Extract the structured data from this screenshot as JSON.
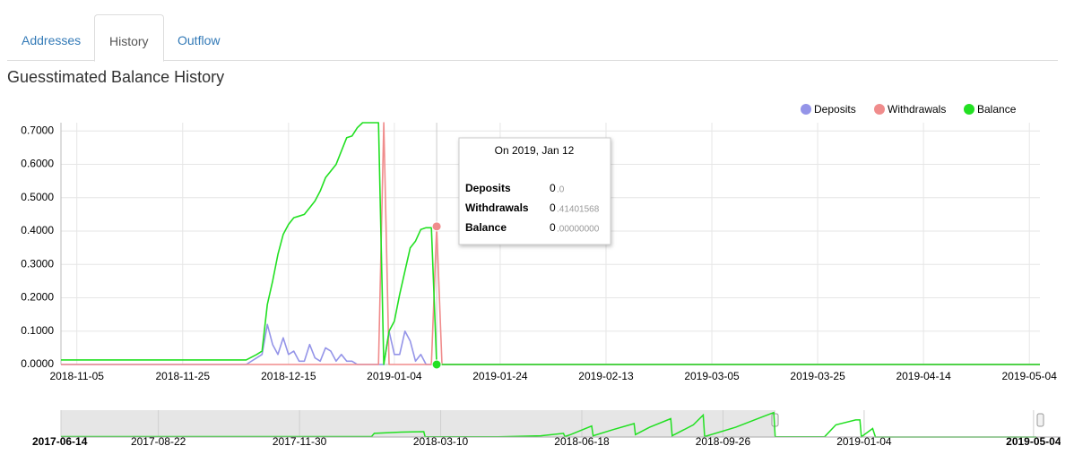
{
  "tabs": [
    "Addresses",
    "History",
    "Outflow"
  ],
  "active_tab": 1,
  "heading": "Guesstimated Balance History",
  "chart_data": {
    "type": "line",
    "x": [
      "2018-11-02",
      "2018-12-07",
      "2018-12-09",
      "2018-12-10",
      "2018-12-11",
      "2018-12-12",
      "2018-12-13",
      "2018-12-14",
      "2018-12-15",
      "2018-12-16",
      "2018-12-17",
      "2018-12-18",
      "2018-12-19",
      "2018-12-20",
      "2018-12-21",
      "2018-12-22",
      "2018-12-23",
      "2018-12-24",
      "2018-12-25",
      "2018-12-26",
      "2018-12-27",
      "2018-12-28",
      "2018-12-29",
      "2018-12-30",
      "2018-12-31",
      "2019-01-01",
      "2019-01-02",
      "2019-01-03",
      "2019-01-04",
      "2019-01-05",
      "2019-01-06",
      "2019-01-07",
      "2019-01-08",
      "2019-01-09",
      "2019-01-10",
      "2019-01-11",
      "2019-01-12",
      "2019-01-13",
      "2019-02-01",
      "2019-05-06"
    ],
    "series": [
      {
        "name": "Deposits",
        "color": "#9494e8",
        "values": [
          0,
          0,
          0.02,
          0.03,
          0.12,
          0.06,
          0.03,
          0.08,
          0.03,
          0.04,
          0.01,
          0.01,
          0.06,
          0.02,
          0.01,
          0.05,
          0.04,
          0.01,
          0.03,
          0.01,
          0.01,
          0,
          0,
          0,
          0,
          0,
          0,
          0.1,
          0.03,
          0.03,
          0.1,
          0.07,
          0.01,
          0.03,
          0,
          0,
          0,
          0,
          0,
          0
        ]
      },
      {
        "name": "Withdrawals",
        "color": "#f08c8c",
        "values": [
          0,
          0,
          0,
          0,
          0,
          0,
          0,
          0,
          0,
          0,
          0,
          0,
          0,
          0,
          0,
          0,
          0,
          0,
          0,
          0,
          0,
          0,
          0,
          0,
          0,
          0,
          0.725,
          0,
          0,
          0,
          0,
          0,
          0,
          0,
          0,
          0,
          0.41401568,
          0,
          0,
          0
        ]
      },
      {
        "name": "Balance",
        "color": "#22e022",
        "values": [
          0.0137,
          0.0137,
          0.03,
          0.04,
          0.18,
          0.25,
          0.33,
          0.39,
          0.42,
          0.44,
          0.445,
          0.45,
          0.47,
          0.49,
          0.52,
          0.56,
          0.58,
          0.6,
          0.64,
          0.68,
          0.685,
          0.71,
          0.725,
          0.725,
          0.725,
          0.725,
          0,
          0.1,
          0.13,
          0.21,
          0.28,
          0.35,
          0.37,
          0.405,
          0.41,
          0.41,
          0,
          0,
          0,
          0
        ]
      }
    ],
    "xlim": [
      "2018-11-02",
      "2019-05-06"
    ],
    "xticks": [
      "2018-11-05",
      "2018-11-25",
      "2018-12-15",
      "2019-01-04",
      "2019-01-24",
      "2019-02-13",
      "2019-03-05",
      "2019-03-25",
      "2019-04-14",
      "2019-05-04"
    ],
    "ylim": [
      0,
      0.725
    ],
    "yticks": [
      {
        "value": 0,
        "label": "0.0000"
      },
      {
        "value": 0.1,
        "label": "0.1000"
      },
      {
        "value": 0.2,
        "label": "0.2000"
      },
      {
        "value": 0.3,
        "label": "0.3000"
      },
      {
        "value": 0.4,
        "label": "0.4000"
      },
      {
        "value": 0.5,
        "label": "0.5000"
      },
      {
        "value": 0.6,
        "label": "0.6000"
      },
      {
        "value": 0.7,
        "label": "0.7000"
      }
    ],
    "grid": true,
    "legend": "top-right",
    "tooltip": {
      "title": "On 2019, Jan 12",
      "rows": [
        {
          "label": "Deposits",
          "int": "0",
          "frac": ".0"
        },
        {
          "label": "Withdrawals",
          "int": "0",
          "frac": ".41401568"
        },
        {
          "label": "Balance",
          "int": "0",
          "frac": ".00000000"
        }
      ]
    },
    "navigator": {
      "color": "#22e022",
      "x": [
        "2017-06-14",
        "2018-01-20",
        "2018-01-22",
        "2018-02-10",
        "2018-02-26",
        "2018-02-27",
        "2018-04-20",
        "2018-05-20",
        "2018-06-05",
        "2018-06-06",
        "2018-06-10",
        "2018-06-25",
        "2018-06-26",
        "2018-07-10",
        "2018-07-25",
        "2018-07-26",
        "2018-08-05",
        "2018-08-20",
        "2018-08-21",
        "2018-09-05",
        "2018-09-12",
        "2018-09-13",
        "2018-10-05",
        "2018-10-25",
        "2018-11-01",
        "2018-11-02",
        "2018-12-07",
        "2018-12-15",
        "2018-12-29",
        "2019-01-01",
        "2019-01-02",
        "2019-01-10",
        "2019-01-12",
        "2019-05-06"
      ],
      "values": [
        0.02,
        0.02,
        0.15,
        0.2,
        0.22,
        0.01,
        0.01,
        0.05,
        0.15,
        0.02,
        0.1,
        0.45,
        0.05,
        0.3,
        0.55,
        0.1,
        0.4,
        0.75,
        0.05,
        0.5,
        0.9,
        0.02,
        0.4,
        0.85,
        1.0,
        0.01,
        0.01,
        0.5,
        0.7,
        0.7,
        0.01,
        0.35,
        0,
        0
      ],
      "xlim": [
        "2017-06-14",
        "2019-05-06"
      ],
      "ylim": [
        0,
        1.1
      ],
      "xticks": [
        "2017-06-14",
        "2017-08-22",
        "2017-11-30",
        "2018-03-10",
        "2018-06-18",
        "2018-09-26",
        "2019-01-04",
        "2019-05-04"
      ]
    }
  }
}
